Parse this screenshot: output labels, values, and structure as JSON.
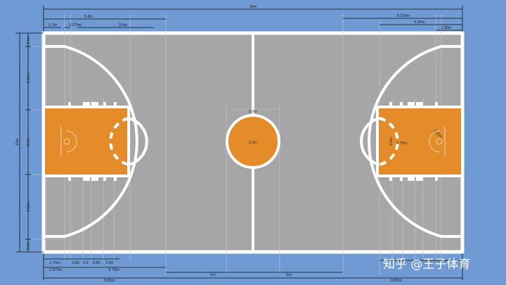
{
  "diagram": {
    "colors": {
      "background": "#6f9ad3",
      "court": "#a6a5a7",
      "paint": "#e48c2a",
      "lines": "#ffffff",
      "dimension": "#111111",
      "guide": "#c8c8c8"
    },
    "top_dimensions": {
      "total_length": "28m",
      "left_arc_distance": "5.8m",
      "left_backboard": "1.2m",
      "left_basket_offset": "0.375m",
      "left_key_depth": "3.6m",
      "right_arc_distance": "8.325m",
      "right_key_length": "5.80m",
      "right_arc_end": "2.99m"
    },
    "left_dimensions": {
      "total_width": "15m",
      "corner_top": "0.9m",
      "upper_segment": "4.15m",
      "key_width": "4.9m",
      "lower_segment": "4.15m",
      "corner_bottom": "0.9m"
    },
    "bottom_dimensions": {
      "row1": [
        "1.75m",
        "0.85",
        "0.4",
        "0.85",
        "0.85"
      ],
      "row2": [
        "1.575m",
        "6.75m"
      ],
      "row2b": [
        "5m",
        "5m"
      ],
      "row3": [
        "8.95m",
        "8.95m"
      ]
    },
    "center_labels": {
      "circle_diameter": "3.6m",
      "inner_circle": "3.5m"
    },
    "right_key_labels": {
      "key_width": "3.6m",
      "three_point_radius": "6.75m",
      "restricted_radius": "1.25m"
    },
    "watermark": "知乎 @王子体育"
  }
}
